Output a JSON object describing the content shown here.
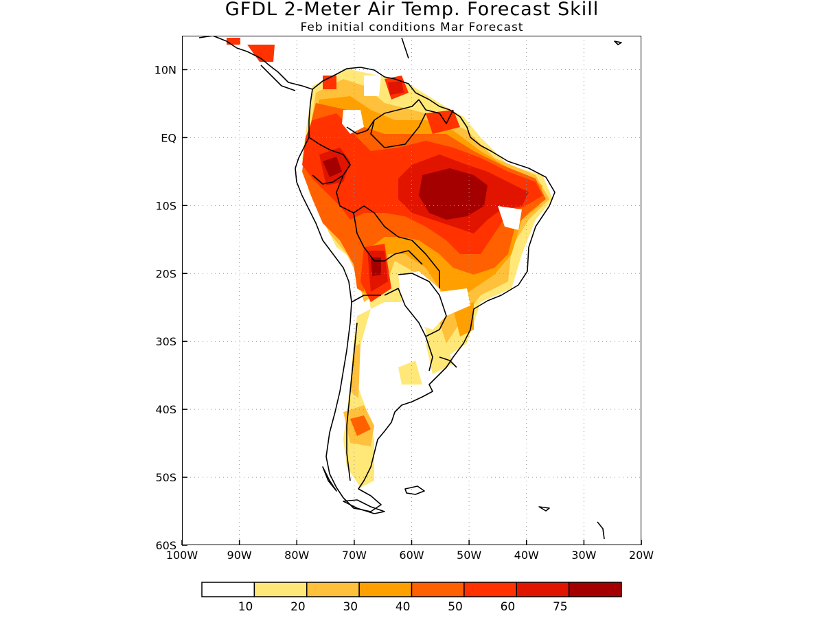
{
  "title": "GFDL 2-Meter Air Temp. Forecast Skill",
  "subtitle": "Feb initial conditions  Mar Forecast",
  "map": {
    "lon_range": [
      -100,
      -20
    ],
    "lat_range": [
      -60,
      15
    ],
    "x_ticks": [
      {
        "lon": -100,
        "label": "100W"
      },
      {
        "lon": -90,
        "label": "90W"
      },
      {
        "lon": -80,
        "label": "80W"
      },
      {
        "lon": -70,
        "label": "70W"
      },
      {
        "lon": -60,
        "label": "60W"
      },
      {
        "lon": -50,
        "label": "50W"
      },
      {
        "lon": -40,
        "label": "40W"
      },
      {
        "lon": -30,
        "label": "30W"
      },
      {
        "lon": -20,
        "label": "20W"
      }
    ],
    "y_ticks": [
      {
        "lat": 10,
        "label": "10N"
      },
      {
        "lat": 0,
        "label": "EQ"
      },
      {
        "lat": -10,
        "label": "10S"
      },
      {
        "lat": -20,
        "label": "20S"
      },
      {
        "lat": -30,
        "label": "30S"
      },
      {
        "lat": -40,
        "label": "40S"
      },
      {
        "lat": -50,
        "label": "50S"
      },
      {
        "lat": -60,
        "label": "60S"
      }
    ],
    "grid": "dotted"
  },
  "colorbar": {
    "colors": [
      "#ffffff",
      "#ffe878",
      "#ffc03c",
      "#ffa000",
      "#ff6000",
      "#ff3200",
      "#e11400",
      "#a50000"
    ],
    "labels": [
      "10",
      "20",
      "30",
      "40",
      "50",
      "60",
      "75"
    ]
  }
}
